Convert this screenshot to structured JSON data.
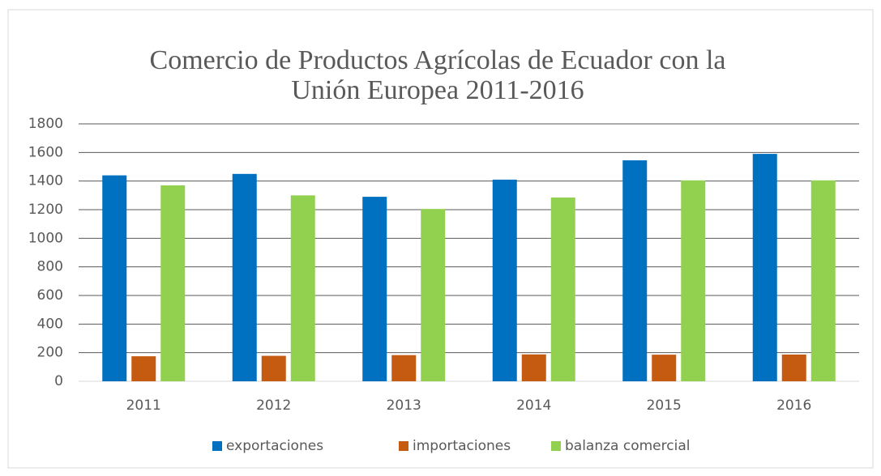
{
  "chart_data": {
    "type": "bar",
    "title": [
      "Comercio de Productos Agrícolas de Ecuador con la",
      "Unión Europea 2011-2016"
    ],
    "categories": [
      "2011",
      "2012",
      "2013",
      "2014",
      "2015",
      "2016"
    ],
    "series": [
      {
        "name": "exportaciones",
        "color": "#0070c0",
        "values": [
          1440,
          1450,
          1290,
          1410,
          1545,
          1590
        ]
      },
      {
        "name": "importaciones",
        "color": "#c55a11",
        "values": [
          175,
          178,
          183,
          188,
          186,
          187
        ]
      },
      {
        "name": "balanza comercial",
        "color": "#92d050",
        "values": [
          1370,
          1300,
          1205,
          1285,
          1405,
          1405
        ]
      }
    ],
    "ylim": [
      0,
      1800
    ],
    "yticks": [
      0,
      200,
      400,
      600,
      800,
      1000,
      1200,
      1400,
      1600,
      1800
    ],
    "grid": true,
    "legend": "bottom"
  }
}
